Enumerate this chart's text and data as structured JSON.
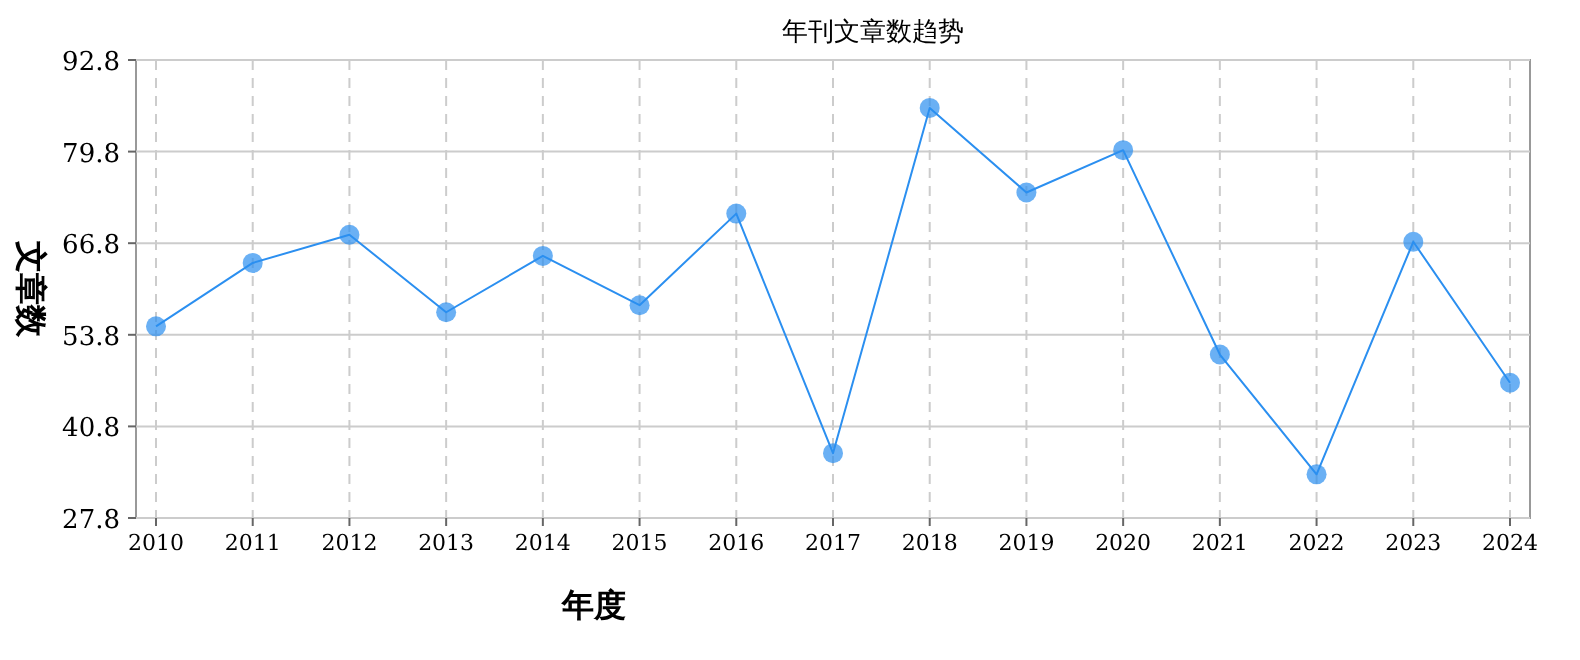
{
  "chart_data": {
    "type": "line",
    "title": "年刊文章数趋势",
    "xlabel": "年度",
    "ylabel": "文章数",
    "categories": [
      "2010",
      "2011",
      "2012",
      "2013",
      "2014",
      "2015",
      "2016",
      "2017",
      "2018",
      "2019",
      "2020",
      "2021",
      "2022",
      "2023",
      "2024"
    ],
    "series": [
      {
        "color": "#2b8ff0",
        "values": [
          55,
          64,
          68,
          57,
          65,
          58,
          71,
          37,
          86,
          74,
          80,
          51,
          34,
          67,
          47
        ]
      }
    ],
    "ylim": [
      27.8,
      92.8
    ],
    "yticks": [
      27.8,
      40.8,
      53.8,
      66.8,
      79.8,
      92.8
    ],
    "grid": true,
    "marker": "circle",
    "line_style": "solid"
  }
}
